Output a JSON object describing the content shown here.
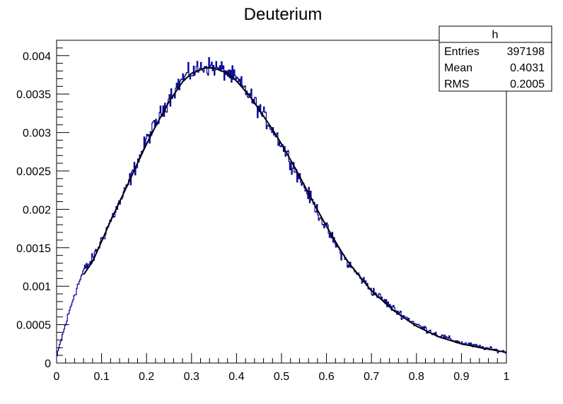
{
  "chart_data": {
    "type": "histogram",
    "title": "Deuterium",
    "xlabel": "",
    "ylabel": "",
    "xlim": [
      0,
      1
    ],
    "ylim": [
      0,
      0.0042
    ],
    "x_ticks": [
      "0",
      "0.1",
      "0.2",
      "0.3",
      "0.4",
      "0.5",
      "0.6",
      "0.7",
      "0.8",
      "0.9",
      "1"
    ],
    "y_ticks": [
      "0",
      "0.0005",
      "0.001",
      "0.0015",
      "0.002",
      "0.0025",
      "0.003",
      "0.0035",
      "0.004"
    ],
    "histogram": {
      "name": "h",
      "color": "#000099",
      "bins": 500,
      "profile_points": [
        [
          0.0,
          7e-05
        ],
        [
          0.01,
          0.0003
        ],
        [
          0.02,
          0.0005
        ],
        [
          0.03,
          0.0007
        ],
        [
          0.04,
          0.0009
        ],
        [
          0.05,
          0.00105
        ],
        [
          0.06,
          0.0012
        ],
        [
          0.08,
          0.00135
        ],
        [
          0.1,
          0.0016
        ],
        [
          0.12,
          0.00185
        ],
        [
          0.15,
          0.0022
        ],
        [
          0.18,
          0.00262
        ],
        [
          0.2,
          0.0029
        ],
        [
          0.22,
          0.0031
        ],
        [
          0.25,
          0.00345
        ],
        [
          0.28,
          0.0037
        ],
        [
          0.3,
          0.00378
        ],
        [
          0.33,
          0.00387
        ],
        [
          0.35,
          0.00385
        ],
        [
          0.38,
          0.00378
        ],
        [
          0.4,
          0.00368
        ],
        [
          0.43,
          0.00348
        ],
        [
          0.45,
          0.0033
        ],
        [
          0.48,
          0.00305
        ],
        [
          0.5,
          0.00285
        ],
        [
          0.53,
          0.00252
        ],
        [
          0.55,
          0.0023
        ],
        [
          0.58,
          0.00198
        ],
        [
          0.6,
          0.00175
        ],
        [
          0.63,
          0.00145
        ],
        [
          0.65,
          0.00128
        ],
        [
          0.7,
          0.00095
        ],
        [
          0.75,
          0.0007
        ],
        [
          0.8,
          0.0005
        ],
        [
          0.85,
          0.00036
        ],
        [
          0.9,
          0.00026
        ],
        [
          0.95,
          0.0002
        ],
        [
          1.0,
          0.00014
        ]
      ],
      "noise_amplitude": 0.00012
    },
    "fit": {
      "color": "#000000",
      "x_range": [
        0.06,
        1.0
      ],
      "points": [
        [
          0.06,
          0.00115
        ],
        [
          0.08,
          0.00132
        ],
        [
          0.1,
          0.00158
        ],
        [
          0.12,
          0.00185
        ],
        [
          0.15,
          0.00222
        ],
        [
          0.18,
          0.0026
        ],
        [
          0.2,
          0.00285
        ],
        [
          0.22,
          0.00308
        ],
        [
          0.25,
          0.0034
        ],
        [
          0.28,
          0.00366
        ],
        [
          0.3,
          0.00377
        ],
        [
          0.33,
          0.00384
        ],
        [
          0.35,
          0.00384
        ],
        [
          0.38,
          0.00377
        ],
        [
          0.4,
          0.00367
        ],
        [
          0.43,
          0.00347
        ],
        [
          0.45,
          0.0033
        ],
        [
          0.48,
          0.00304
        ],
        [
          0.5,
          0.00285
        ],
        [
          0.53,
          0.00254
        ],
        [
          0.55,
          0.00232
        ],
        [
          0.58,
          0.00199
        ],
        [
          0.6,
          0.00178
        ],
        [
          0.63,
          0.00148
        ],
        [
          0.65,
          0.0013
        ],
        [
          0.7,
          0.00094
        ],
        [
          0.75,
          0.00068
        ],
        [
          0.8,
          0.00048
        ],
        [
          0.85,
          0.00034
        ],
        [
          0.9,
          0.00025
        ],
        [
          0.95,
          0.00019
        ],
        [
          1.0,
          0.00014
        ]
      ]
    },
    "stats_box": {
      "name": "h",
      "rows": [
        {
          "label": "Entries",
          "value": "397198"
        },
        {
          "label": "Mean",
          "value": "0.4031"
        },
        {
          "label": "RMS",
          "value": "0.2005"
        }
      ]
    }
  }
}
